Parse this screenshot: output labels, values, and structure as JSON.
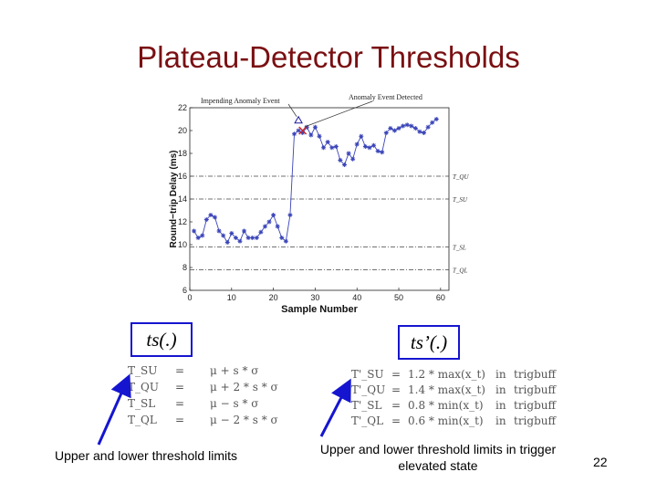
{
  "slide": {
    "title": "Plateau-Detector Thresholds",
    "page_number": "22"
  },
  "left_box": {
    "label": "ts(.)"
  },
  "right_box": {
    "label": "ts’(.)"
  },
  "left_equations": [
    {
      "lhs": "T_SU",
      "op": "=",
      "rhs": "μ + s * σ"
    },
    {
      "lhs": "T_QU",
      "op": "=",
      "rhs": "μ + 2 * s * σ"
    },
    {
      "lhs": "T_SL",
      "op": "=",
      "rhs": "μ − s * σ"
    },
    {
      "lhs": "T_QL",
      "op": "=",
      "rhs": "μ − 2 * s * σ"
    }
  ],
  "right_equations": [
    {
      "lhs": "T'_SU",
      "op": "=",
      "rhs": "1.2 * max(x_t)",
      "in": "in",
      "buf": "trigbuff"
    },
    {
      "lhs": "T'_QU",
      "op": "=",
      "rhs": "1.4 * max(x_t)",
      "in": "in",
      "buf": "trigbuff"
    },
    {
      "lhs": "T'_SL",
      "op": "=",
      "rhs": "0.8 * min(x_t)",
      "in": "in",
      "buf": "trigbuff"
    },
    {
      "lhs": "T'_QL",
      "op": "=",
      "rhs": "0.6 * min(x_t)",
      "in": "in",
      "buf": "trigbuff"
    }
  ],
  "captions": {
    "left": "Upper and lower threshold limits",
    "right": "Upper and lower threshold limits in trigger elevated state"
  },
  "chart_data": {
    "type": "line",
    "xlabel": "Sample Number",
    "ylabel": "Round−trip Delay (ms)",
    "xlim": [
      0,
      62
    ],
    "ylim": [
      6,
      22
    ],
    "x_ticks": [
      "0",
      "10",
      "20",
      "30",
      "40",
      "50",
      "60"
    ],
    "y_ticks": [
      "6",
      "8",
      "10",
      "12",
      "14",
      "16",
      "18",
      "20",
      "22"
    ],
    "series": [
      {
        "x": [
          1,
          2,
          3,
          4,
          5,
          6,
          7,
          8,
          9,
          10,
          11,
          12,
          13,
          14,
          15,
          16,
          17,
          18,
          19,
          20,
          21,
          22,
          23,
          24,
          25,
          26,
          27,
          28,
          29,
          30,
          31,
          32,
          33,
          34,
          35,
          36,
          37,
          38,
          39,
          40,
          41,
          42,
          43,
          44,
          45,
          46,
          47,
          48,
          49,
          50,
          51,
          52,
          53,
          54,
          55,
          56,
          57,
          58,
          59
        ],
        "values": [
          11.2,
          10.6,
          10.8,
          12.2,
          12.6,
          12.4,
          11.2,
          10.8,
          10.2,
          11.0,
          10.6,
          10.3,
          11.2,
          10.6,
          10.6,
          10.6,
          11.1,
          11.6,
          12.0,
          12.6,
          11.6,
          10.6,
          10.3,
          12.6,
          19.7,
          20.0,
          19.8,
          20.3,
          19.6,
          20.3,
          19.5,
          18.5,
          19.0,
          18.5,
          18.6,
          17.4,
          17.0,
          18.0,
          17.5,
          18.8,
          19.5,
          18.6,
          18.5,
          18.7,
          18.2,
          18.1,
          19.8,
          20.2,
          20.0,
          20.2,
          20.4,
          20.5,
          20.4,
          20.2,
          19.9,
          19.8,
          20.3,
          20.7,
          21.0
        ],
        "color": "#3a44b8"
      }
    ],
    "thresholds": [
      {
        "label": "T_QU",
        "value": 16.0
      },
      {
        "label": "T_SU",
        "value": 14.0
      },
      {
        "label": "T_SL",
        "value": 9.8
      },
      {
        "label": "T_QL",
        "value": 7.8
      }
    ],
    "annotations": [
      {
        "text": "Impending Anomaly Event",
        "x": 26,
        "y": 20.9,
        "marker": "triangle"
      },
      {
        "text": "Anomaly Event Detected",
        "x": 27,
        "y": 20.0,
        "marker": "x",
        "color": "#cc2222"
      }
    ]
  }
}
